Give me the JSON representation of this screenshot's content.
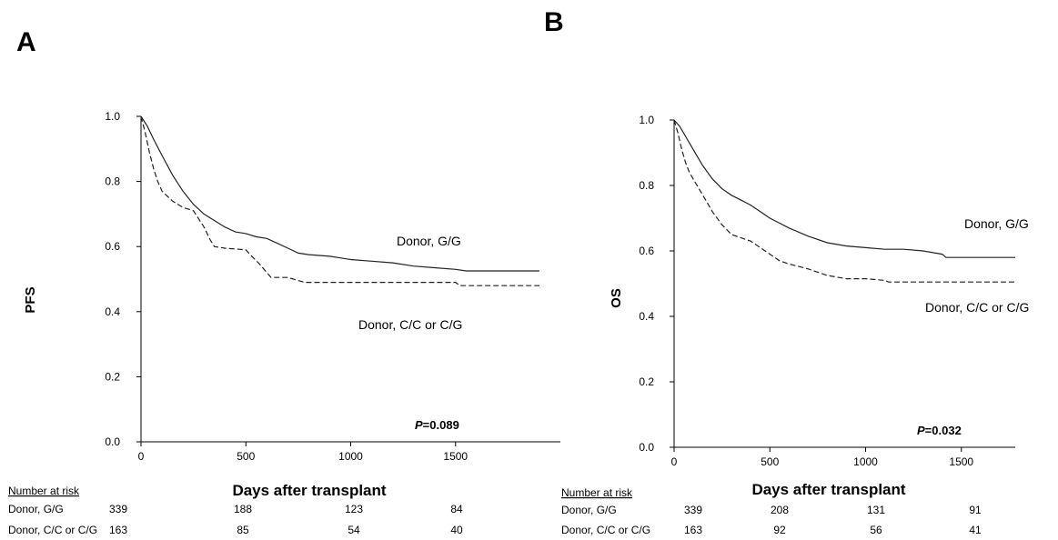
{
  "chart_data": [
    {
      "panel_label": "A",
      "type": "line",
      "xlabel": "Days after transplant",
      "ylabel": "PFS",
      "xlim": [
        0,
        1900
      ],
      "ylim": [
        0,
        1.0
      ],
      "x_ticks": [
        "0",
        "500",
        "1000",
        "1500"
      ],
      "x_tick_values": [
        0,
        500,
        1000,
        1500
      ],
      "y_ticks": [
        "0.0",
        "0.2",
        "0.4",
        "0.6",
        "0.8",
        "1.0"
      ],
      "y_tick_values": [
        0,
        0.2,
        0.4,
        0.6,
        0.8,
        1.0
      ],
      "p_value_prefix": "P",
      "p_value_text": "=0.089",
      "series": [
        {
          "name": "Donor, G/G",
          "line_style": "solid",
          "points": [
            [
              0,
              1.0
            ],
            [
              30,
              0.97
            ],
            [
              60,
              0.93
            ],
            [
              100,
              0.88
            ],
            [
              150,
              0.82
            ],
            [
              200,
              0.77
            ],
            [
              250,
              0.73
            ],
            [
              300,
              0.7
            ],
            [
              350,
              0.68
            ],
            [
              400,
              0.66
            ],
            [
              450,
              0.645
            ],
            [
              500,
              0.64
            ],
            [
              550,
              0.63
            ],
            [
              600,
              0.625
            ],
            [
              650,
              0.61
            ],
            [
              700,
              0.595
            ],
            [
              750,
              0.58
            ],
            [
              800,
              0.575
            ],
            [
              900,
              0.57
            ],
            [
              1000,
              0.56
            ],
            [
              1100,
              0.555
            ],
            [
              1200,
              0.55
            ],
            [
              1300,
              0.54
            ],
            [
              1400,
              0.535
            ],
            [
              1500,
              0.53
            ],
            [
              1550,
              0.525
            ],
            [
              1800,
              0.525
            ],
            [
              1900,
              0.525
            ]
          ]
        },
        {
          "name": "Donor, C/C or C/G",
          "line_style": "dashed",
          "points": [
            [
              0,
              1.0
            ],
            [
              20,
              0.95
            ],
            [
              40,
              0.89
            ],
            [
              60,
              0.84
            ],
            [
              80,
              0.8
            ],
            [
              100,
              0.77
            ],
            [
              150,
              0.74
            ],
            [
              200,
              0.72
            ],
            [
              250,
              0.71
            ],
            [
              300,
              0.66
            ],
            [
              330,
              0.62
            ],
            [
              350,
              0.6
            ],
            [
              400,
              0.595
            ],
            [
              500,
              0.59
            ],
            [
              520,
              0.575
            ],
            [
              560,
              0.55
            ],
            [
              600,
              0.52
            ],
            [
              620,
              0.505
            ],
            [
              700,
              0.505
            ],
            [
              780,
              0.49
            ],
            [
              1500,
              0.49
            ],
            [
              1520,
              0.48
            ],
            [
              1900,
              0.48
            ]
          ]
        }
      ],
      "risk_table": {
        "title": "Number at risk",
        "rows": [
          {
            "label": "Donor, G/G",
            "values": [
              "339",
              "188",
              "123",
              "84"
            ]
          },
          {
            "label": "Donor, C/C or C/G",
            "values": [
              "163",
              "85",
              "54",
              "40"
            ]
          }
        ]
      }
    },
    {
      "panel_label": "B",
      "type": "line",
      "xlabel": "Days after transplant",
      "ylabel": "OS",
      "xlim": [
        0,
        1900
      ],
      "ylim": [
        0,
        1.0
      ],
      "x_ticks": [
        "0",
        "500",
        "1000",
        "1500"
      ],
      "x_tick_values": [
        0,
        500,
        1000,
        1500
      ],
      "y_ticks": [
        "0.0",
        "0.2",
        "0.4",
        "0.6",
        "0.8",
        "1.0"
      ],
      "y_tick_values": [
        0,
        0.2,
        0.4,
        0.6,
        0.8,
        1.0
      ],
      "p_value_prefix": "P",
      "p_value_text": "=0.032",
      "series": [
        {
          "name": "Donor, G/G",
          "line_style": "solid",
          "points": [
            [
              0,
              1.0
            ],
            [
              30,
              0.98
            ],
            [
              60,
              0.95
            ],
            [
              100,
              0.91
            ],
            [
              150,
              0.86
            ],
            [
              200,
              0.82
            ],
            [
              250,
              0.79
            ],
            [
              300,
              0.77
            ],
            [
              350,
              0.755
            ],
            [
              400,
              0.74
            ],
            [
              450,
              0.72
            ],
            [
              500,
              0.7
            ],
            [
              550,
              0.685
            ],
            [
              600,
              0.67
            ],
            [
              700,
              0.645
            ],
            [
              800,
              0.625
            ],
            [
              900,
              0.615
            ],
            [
              1000,
              0.61
            ],
            [
              1100,
              0.605
            ],
            [
              1200,
              0.605
            ],
            [
              1300,
              0.6
            ],
            [
              1400,
              0.59
            ],
            [
              1420,
              0.58
            ],
            [
              1950,
              0.58
            ]
          ]
        },
        {
          "name": "Donor, C/C or C/G",
          "line_style": "dashed",
          "points": [
            [
              0,
              1.0
            ],
            [
              20,
              0.96
            ],
            [
              40,
              0.91
            ],
            [
              60,
              0.87
            ],
            [
              80,
              0.84
            ],
            [
              100,
              0.82
            ],
            [
              150,
              0.77
            ],
            [
              200,
              0.72
            ],
            [
              250,
              0.68
            ],
            [
              300,
              0.65
            ],
            [
              350,
              0.64
            ],
            [
              400,
              0.63
            ],
            [
              450,
              0.61
            ],
            [
              500,
              0.59
            ],
            [
              550,
              0.57
            ],
            [
              600,
              0.56
            ],
            [
              700,
              0.545
            ],
            [
              800,
              0.525
            ],
            [
              900,
              0.515
            ],
            [
              1000,
              0.515
            ],
            [
              1100,
              0.51
            ],
            [
              1120,
              0.505
            ],
            [
              1950,
              0.505
            ]
          ]
        }
      ],
      "risk_table": {
        "title": "Number at risk",
        "rows": [
          {
            "label": "Donor, G/G",
            "values": [
              "339",
              "208",
              "131",
              "91"
            ]
          },
          {
            "label": "Donor, C/C or C/G",
            "values": [
              "163",
              "92",
              "56",
              "41"
            ]
          }
        ]
      }
    }
  ]
}
